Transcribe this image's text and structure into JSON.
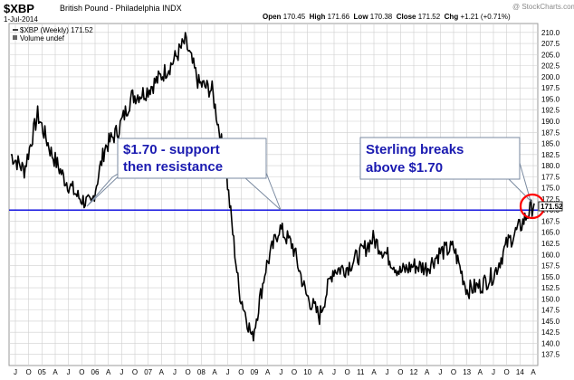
{
  "header": {
    "ticker": "$XBP",
    "name": "British Pound - Philadelphia",
    "exchange": "INDX",
    "date": "1-Jul-2014",
    "watermark": "@ StockCharts.com",
    "open_label": "Open",
    "open": "170.45",
    "high_label": "High",
    "high": "171.66",
    "low_label": "Low",
    "low": "170.38",
    "close_label": "Close",
    "close": "171.52",
    "chg_label": "Chg",
    "chg": "+1.21 (+0.71%)"
  },
  "legend": {
    "series_label": "$XBP (Weekly) 171.52",
    "volume_label": "Volume undef"
  },
  "colors": {
    "price": "#000000",
    "support_line": "#0000dd",
    "grid": "#cfcfcf",
    "callout_text": "#1a1ab0",
    "circle": "#ff0000",
    "last_bg": "#000000"
  },
  "chart_data": {
    "type": "line",
    "ylim": [
      135,
      212
    ],
    "y_ticks": [
      "137.5",
      "140.0",
      "142.5",
      "145.0",
      "147.5",
      "150.0",
      "152.5",
      "155.0",
      "157.5",
      "160.0",
      "162.5",
      "165.0",
      "167.5",
      "170.0",
      "172.5",
      "175.0",
      "177.5",
      "180.0",
      "182.5",
      "185.0",
      "187.5",
      "190.0",
      "192.5",
      "195.0",
      "197.5",
      "200.0",
      "202.5",
      "205.0",
      "207.5",
      "210.0"
    ],
    "x_ticks": [
      "J",
      "O",
      "05",
      "A",
      "J",
      "O",
      "06",
      "A",
      "J",
      "O",
      "07",
      "A",
      "J",
      "O",
      "08",
      "A",
      "J",
      "O",
      "09",
      "A",
      "J",
      "O",
      "10",
      "A",
      "J",
      "O",
      "11",
      "A",
      "J",
      "O",
      "12",
      "A",
      "J",
      "O",
      "13",
      "A",
      "J",
      "O",
      "14",
      "A"
    ],
    "support_level": 170.0,
    "last_value": "171.52",
    "series": [
      {
        "values_by_quarter": [
          {
            "t": "2004-Q3",
            "v": 182.5
          },
          {
            "t": "2004-Q4",
            "v": 179
          },
          {
            "t": "2005-Q1",
            "v": 191.5
          },
          {
            "t": "2005-Q2",
            "v": 183
          },
          {
            "t": "2005-Q3",
            "v": 177
          },
          {
            "t": "2005-Q4",
            "v": 173
          },
          {
            "t": "2006-Q1",
            "v": 171
          },
          {
            "t": "2006-Q2",
            "v": 184
          },
          {
            "t": "2006-Q3",
            "v": 188
          },
          {
            "t": "2006-Q4",
            "v": 195.5
          },
          {
            "t": "2007-Q1",
            "v": 196.5
          },
          {
            "t": "2007-Q2",
            "v": 199.5
          },
          {
            "t": "2007-Q3",
            "v": 203
          },
          {
            "t": "2007-Q4",
            "v": 208
          },
          {
            "t": "2008-Q1",
            "v": 198.5
          },
          {
            "t": "2008-Q2",
            "v": 197
          },
          {
            "t": "2008-Q3",
            "v": 180
          },
          {
            "t": "2008-Q4",
            "v": 152
          },
          {
            "t": "2009-Q1",
            "v": 141
          },
          {
            "t": "2009-Q2",
            "v": 157
          },
          {
            "t": "2009-Q3",
            "v": 166
          },
          {
            "t": "2009-Q4",
            "v": 162
          },
          {
            "t": "2010-Q1",
            "v": 151
          },
          {
            "t": "2010-Q2",
            "v": 146
          },
          {
            "t": "2010-Q3",
            "v": 156.5
          },
          {
            "t": "2010-Q4",
            "v": 157
          },
          {
            "t": "2011-Q1",
            "v": 160
          },
          {
            "t": "2011-Q2",
            "v": 163.5
          },
          {
            "t": "2011-Q3",
            "v": 160
          },
          {
            "t": "2011-Q4",
            "v": 156
          },
          {
            "t": "2012-Q1",
            "v": 157.5
          },
          {
            "t": "2012-Q2",
            "v": 157
          },
          {
            "t": "2012-Q3",
            "v": 160.5
          },
          {
            "t": "2012-Q4",
            "v": 161.5
          },
          {
            "t": "2013-Q1",
            "v": 152
          },
          {
            "t": "2013-Q2",
            "v": 153
          },
          {
            "t": "2013-Q3",
            "v": 155.5
          },
          {
            "t": "2013-Q4",
            "v": 162.5
          },
          {
            "t": "2014-Q1",
            "v": 166.5
          },
          {
            "t": "2014-Q2",
            "v": 171.5
          }
        ]
      }
    ],
    "annotations": [
      {
        "text_lines": [
          "$1.70 - support",
          "then resistance"
        ]
      },
      {
        "text_lines": [
          "Sterling breaks",
          "above $1.70"
        ]
      }
    ]
  }
}
